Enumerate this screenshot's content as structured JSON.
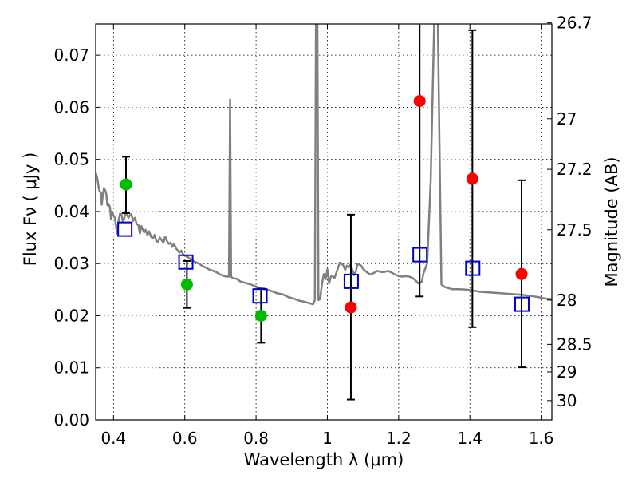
{
  "chart_data": {
    "type": "scatter",
    "xlabel": "Wavelength  λ (μm)",
    "ylabel": "Flux  Fν  ( μJy )",
    "y2label": "Magnitude (AB)",
    "xlim": [
      0.35,
      1.63
    ],
    "ylim": [
      0,
      0.076
    ],
    "grid": true,
    "x_ticks": [
      {
        "value": 0.4,
        "label": "0.4"
      },
      {
        "value": 0.6,
        "label": "0.6"
      },
      {
        "value": 0.8,
        "label": "0.8"
      },
      {
        "value": 1.0,
        "label": "1"
      },
      {
        "value": 1.2,
        "label": "1.2"
      },
      {
        "value": 1.4,
        "label": "1.4"
      },
      {
        "value": 1.6,
        "label": "1.6"
      }
    ],
    "y_ticks": [
      {
        "value": 0.0,
        "label": "0.00"
      },
      {
        "value": 0.01,
        "label": "0.01"
      },
      {
        "value": 0.02,
        "label": "0.02"
      },
      {
        "value": 0.03,
        "label": "0.03"
      },
      {
        "value": 0.04,
        "label": "0.04"
      },
      {
        "value": 0.05,
        "label": "0.05"
      },
      {
        "value": 0.06,
        "label": "0.06"
      },
      {
        "value": 0.07,
        "label": "0.07"
      }
    ],
    "y2_ticks": [
      {
        "label": "26.7",
        "flux": 0.0762
      },
      {
        "label": "27",
        "flux": 0.0578
      },
      {
        "label": "27.2",
        "flux": 0.0481
      },
      {
        "label": "27.5",
        "flux": 0.0365
      },
      {
        "label": "28",
        "flux": 0.023
      },
      {
        "label": "28.5",
        "flux": 0.0145
      },
      {
        "label": "29",
        "flux": 0.0092
      },
      {
        "label": "30",
        "flux": 0.0037
      }
    ],
    "colors": {
      "green": "#00bb00",
      "red": "#ff0000",
      "model": "#808080",
      "square": "#0000cc",
      "errorbar": "#000000"
    },
    "green_points": [
      {
        "x": 0.435,
        "y": 0.0452,
        "err": null
      },
      {
        "x": 0.606,
        "y": 0.026,
        "err": [
          0.0215,
          0.0305
        ]
      },
      {
        "x": 0.814,
        "y": 0.02,
        "err": [
          0.0148,
          0.0252
        ]
      }
    ],
    "red_points": [
      {
        "x": 1.066,
        "y": 0.0216,
        "err": [
          0.0039,
          0.0394
        ]
      },
      {
        "x": 1.259,
        "y": 0.0612,
        "err": [
          0.0237,
          0.0762
        ]
      },
      {
        "x": 1.407,
        "y": 0.0463,
        "err": [
          0.0178,
          0.0748
        ]
      },
      {
        "x": 1.545,
        "y": 0.028,
        "err": [
          0.0101,
          0.046
        ]
      }
    ],
    "extra_errorbar": {
      "x": 0.435,
      "err": [
        0.0397,
        0.0505
      ]
    },
    "model_squares": [
      {
        "x": 0.432,
        "y": 0.0366
      },
      {
        "x": 0.603,
        "y": 0.0303
      },
      {
        "x": 0.811,
        "y": 0.0238
      },
      {
        "x": 1.067,
        "y": 0.0266
      },
      {
        "x": 1.26,
        "y": 0.0317
      },
      {
        "x": 1.408,
        "y": 0.0291
      },
      {
        "x": 1.546,
        "y": 0.0222
      }
    ],
    "model_spectrum": [
      [
        0.35,
        0.0475
      ],
      [
        0.355,
        0.0462
      ],
      [
        0.36,
        0.044
      ],
      [
        0.365,
        0.0436
      ],
      [
        0.367,
        0.0413
      ],
      [
        0.37,
        0.043
      ],
      [
        0.373,
        0.0445
      ],
      [
        0.377,
        0.044
      ],
      [
        0.38,
        0.0432
      ],
      [
        0.383,
        0.0412
      ],
      [
        0.386,
        0.0415
      ],
      [
        0.39,
        0.0408
      ],
      [
        0.393,
        0.0385
      ],
      [
        0.396,
        0.04
      ],
      [
        0.4,
        0.0392
      ],
      [
        0.404,
        0.0388
      ],
      [
        0.407,
        0.0372
      ],
      [
        0.41,
        0.0358
      ],
      [
        0.414,
        0.0382
      ],
      [
        0.418,
        0.0396
      ],
      [
        0.422,
        0.0395
      ],
      [
        0.426,
        0.0381
      ],
      [
        0.43,
        0.0386
      ],
      [
        0.434,
        0.04
      ],
      [
        0.438,
        0.0394
      ],
      [
        0.442,
        0.0388
      ],
      [
        0.446,
        0.0393
      ],
      [
        0.45,
        0.0395
      ],
      [
        0.455,
        0.0382
      ],
      [
        0.46,
        0.0388
      ],
      [
        0.465,
        0.0376
      ],
      [
        0.47,
        0.0374
      ],
      [
        0.474,
        0.0358
      ],
      [
        0.478,
        0.0372
      ],
      [
        0.482,
        0.0366
      ],
      [
        0.486,
        0.036
      ],
      [
        0.49,
        0.0365
      ],
      [
        0.495,
        0.0355
      ],
      [
        0.5,
        0.0362
      ],
      [
        0.505,
        0.0352
      ],
      [
        0.51,
        0.0348
      ],
      [
        0.515,
        0.0355
      ],
      [
        0.52,
        0.0343
      ],
      [
        0.525,
        0.0342
      ],
      [
        0.53,
        0.035
      ],
      [
        0.535,
        0.0345
      ],
      [
        0.54,
        0.034
      ],
      [
        0.545,
        0.0352
      ],
      [
        0.55,
        0.0343
      ],
      [
        0.555,
        0.0338
      ],
      [
        0.56,
        0.034
      ],
      [
        0.565,
        0.0332
      ],
      [
        0.57,
        0.0338
      ],
      [
        0.575,
        0.033
      ],
      [
        0.58,
        0.0325
      ],
      [
        0.585,
        0.0321
      ],
      [
        0.59,
        0.0325
      ],
      [
        0.595,
        0.0318
      ],
      [
        0.6,
        0.0315
      ],
      [
        0.61,
        0.0312
      ],
      [
        0.62,
        0.0306
      ],
      [
        0.63,
        0.0303
      ],
      [
        0.64,
        0.03
      ],
      [
        0.65,
        0.0295
      ],
      [
        0.66,
        0.0292
      ],
      [
        0.67,
        0.0288
      ],
      [
        0.68,
        0.0286
      ],
      [
        0.69,
        0.0283
      ],
      [
        0.7,
        0.0279
      ],
      [
        0.71,
        0.0276
      ],
      [
        0.72,
        0.0275
      ],
      [
        0.724,
        0.0275
      ],
      [
        0.727,
        0.0615
      ],
      [
        0.73,
        0.0275
      ],
      [
        0.735,
        0.0272
      ],
      [
        0.745,
        0.0271
      ],
      [
        0.755,
        0.0266
      ],
      [
        0.765,
        0.0264
      ],
      [
        0.775,
        0.0262
      ],
      [
        0.785,
        0.026
      ],
      [
        0.8,
        0.0256
      ],
      [
        0.815,
        0.0252
      ],
      [
        0.83,
        0.025
      ],
      [
        0.845,
        0.0247
      ],
      [
        0.86,
        0.0243
      ],
      [
        0.875,
        0.0241
      ],
      [
        0.89,
        0.0236
      ],
      [
        0.905,
        0.0233
      ],
      [
        0.92,
        0.0229
      ],
      [
        0.935,
        0.0227
      ],
      [
        0.95,
        0.0224
      ],
      [
        0.96,
        0.0222
      ],
      [
        0.965,
        0.023
      ],
      [
        0.968,
        0.0765
      ],
      [
        0.972,
        0.0765
      ],
      [
        0.975,
        0.023
      ],
      [
        0.98,
        0.0232
      ],
      [
        0.985,
        0.0262
      ],
      [
        0.99,
        0.028
      ],
      [
        0.995,
        0.027
      ],
      [
        1.0,
        0.0289
      ],
      [
        1.005,
        0.0262
      ],
      [
        1.01,
        0.0275
      ],
      [
        1.015,
        0.0276
      ],
      [
        1.02,
        0.0272
      ],
      [
        1.025,
        0.0282
      ],
      [
        1.03,
        0.0292
      ],
      [
        1.035,
        0.0302
      ],
      [
        1.04,
        0.03
      ],
      [
        1.045,
        0.0296
      ],
      [
        1.05,
        0.0288
      ],
      [
        1.055,
        0.0296
      ],
      [
        1.06,
        0.0293
      ],
      [
        1.065,
        0.0298
      ],
      [
        1.07,
        0.0288
      ],
      [
        1.075,
        0.0278
      ],
      [
        1.08,
        0.0285
      ],
      [
        1.085,
        0.03
      ],
      [
        1.09,
        0.0298
      ],
      [
        1.095,
        0.0296
      ],
      [
        1.1,
        0.029
      ],
      [
        1.11,
        0.0284
      ],
      [
        1.12,
        0.0279
      ],
      [
        1.13,
        0.0282
      ],
      [
        1.14,
        0.0286
      ],
      [
        1.15,
        0.0284
      ],
      [
        1.16,
        0.0284
      ],
      [
        1.17,
        0.0286
      ],
      [
        1.18,
        0.0283
      ],
      [
        1.19,
        0.0279
      ],
      [
        1.2,
        0.0276
      ],
      [
        1.21,
        0.0275
      ],
      [
        1.22,
        0.0276
      ],
      [
        1.23,
        0.0275
      ],
      [
        1.24,
        0.0272
      ],
      [
        1.25,
        0.0266
      ],
      [
        1.255,
        0.0262
      ],
      [
        1.265,
        0.0265
      ],
      [
        1.27,
        0.0282
      ],
      [
        1.28,
        0.03
      ],
      [
        1.29,
        0.046
      ],
      [
        1.3,
        0.0765
      ],
      [
        1.31,
        0.0765
      ],
      [
        1.32,
        0.026
      ],
      [
        1.33,
        0.0255
      ],
      [
        1.34,
        0.0253
      ],
      [
        1.35,
        0.0251
      ],
      [
        1.37,
        0.0251
      ],
      [
        1.39,
        0.025
      ],
      [
        1.41,
        0.0248
      ],
      [
        1.43,
        0.0246
      ],
      [
        1.45,
        0.0245
      ],
      [
        1.47,
        0.0244
      ],
      [
        1.49,
        0.0243
      ],
      [
        1.51,
        0.0242
      ],
      [
        1.53,
        0.0241
      ],
      [
        1.55,
        0.024
      ],
      [
        1.57,
        0.0238
      ],
      [
        1.59,
        0.0236
      ],
      [
        1.61,
        0.0233
      ],
      [
        1.63,
        0.0232
      ]
    ]
  }
}
